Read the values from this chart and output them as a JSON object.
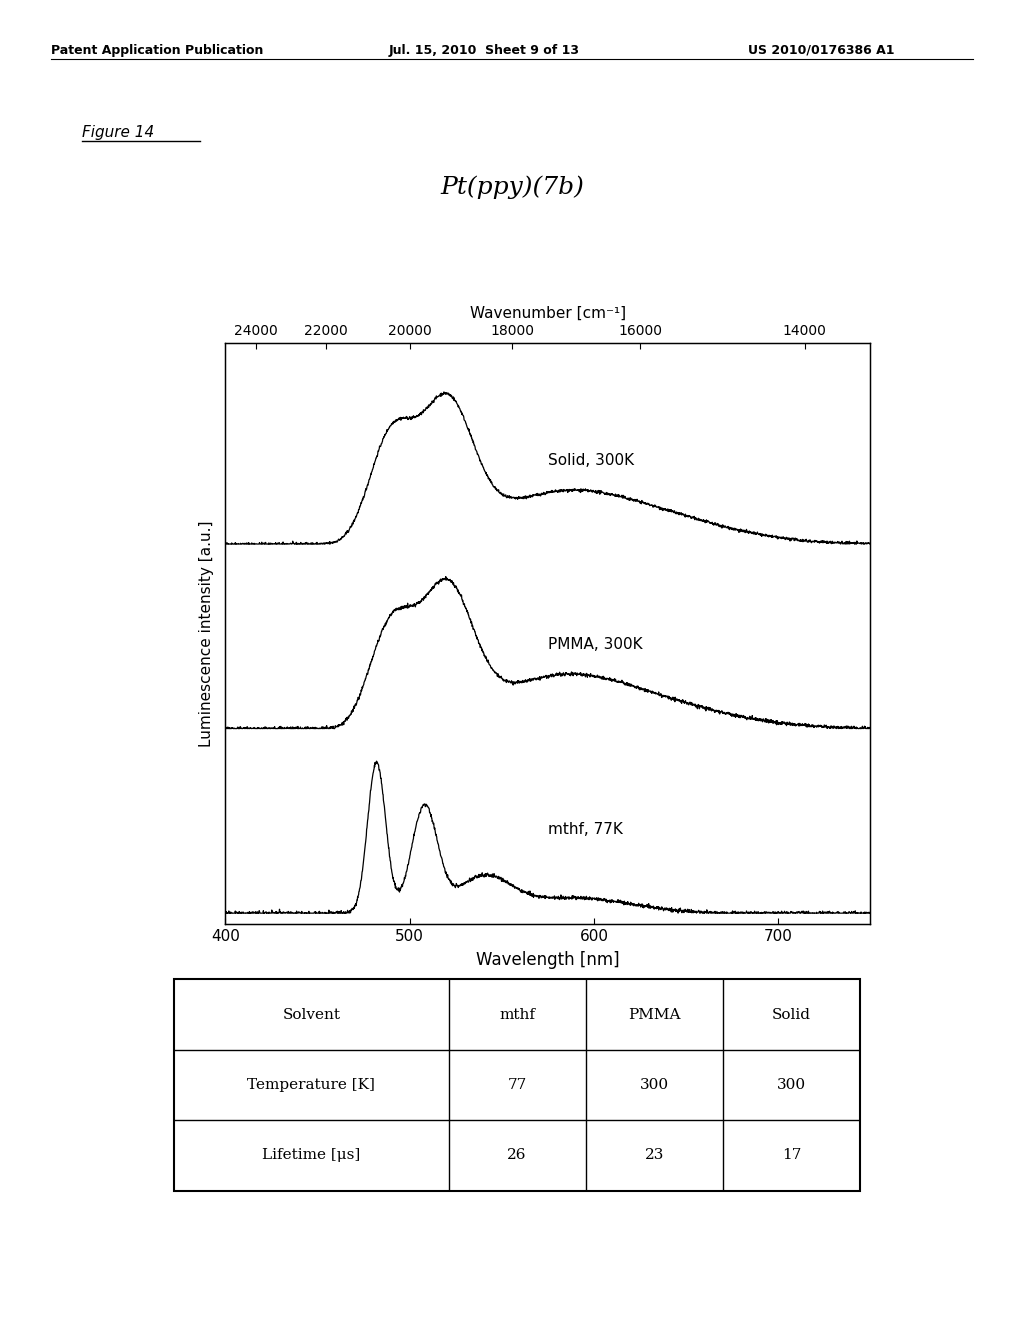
{
  "page_header_left": "Patent Application Publication",
  "page_header_mid": "Jul. 15, 2010  Sheet 9 of 13",
  "page_header_right": "US 2010/0176386 A1",
  "figure_label": "Figure 14",
  "chart_title": "Pt(ppy)(7b)",
  "wavenumber_label": "Wavenumber [cm⁻¹]",
  "wavenumber_ticks": [
    24000,
    22000,
    20000,
    18000,
    16000,
    14000
  ],
  "wavelength_ticks": [
    400,
    500,
    600,
    700
  ],
  "xlabel": "Wavelength [nm]",
  "ylabel": "Luminescence intensity [a.u.]",
  "xmin": 400,
  "xmax": 750,
  "curve_labels": [
    "Solid, 300K",
    "PMMA, 300K",
    "mthf, 77K"
  ],
  "table_headers": [
    "Solvent",
    "mthf",
    "PMMA",
    "Solid"
  ],
  "table_row1_label": "Temperature [K]",
  "table_row1_values": [
    "77",
    "300",
    "300"
  ],
  "table_row2_label": "Lifetime [μs]",
  "table_row2_values": [
    "26",
    "23",
    "17"
  ],
  "bg_color": "#ffffff",
  "line_color": "#000000",
  "font_color": "#000000"
}
